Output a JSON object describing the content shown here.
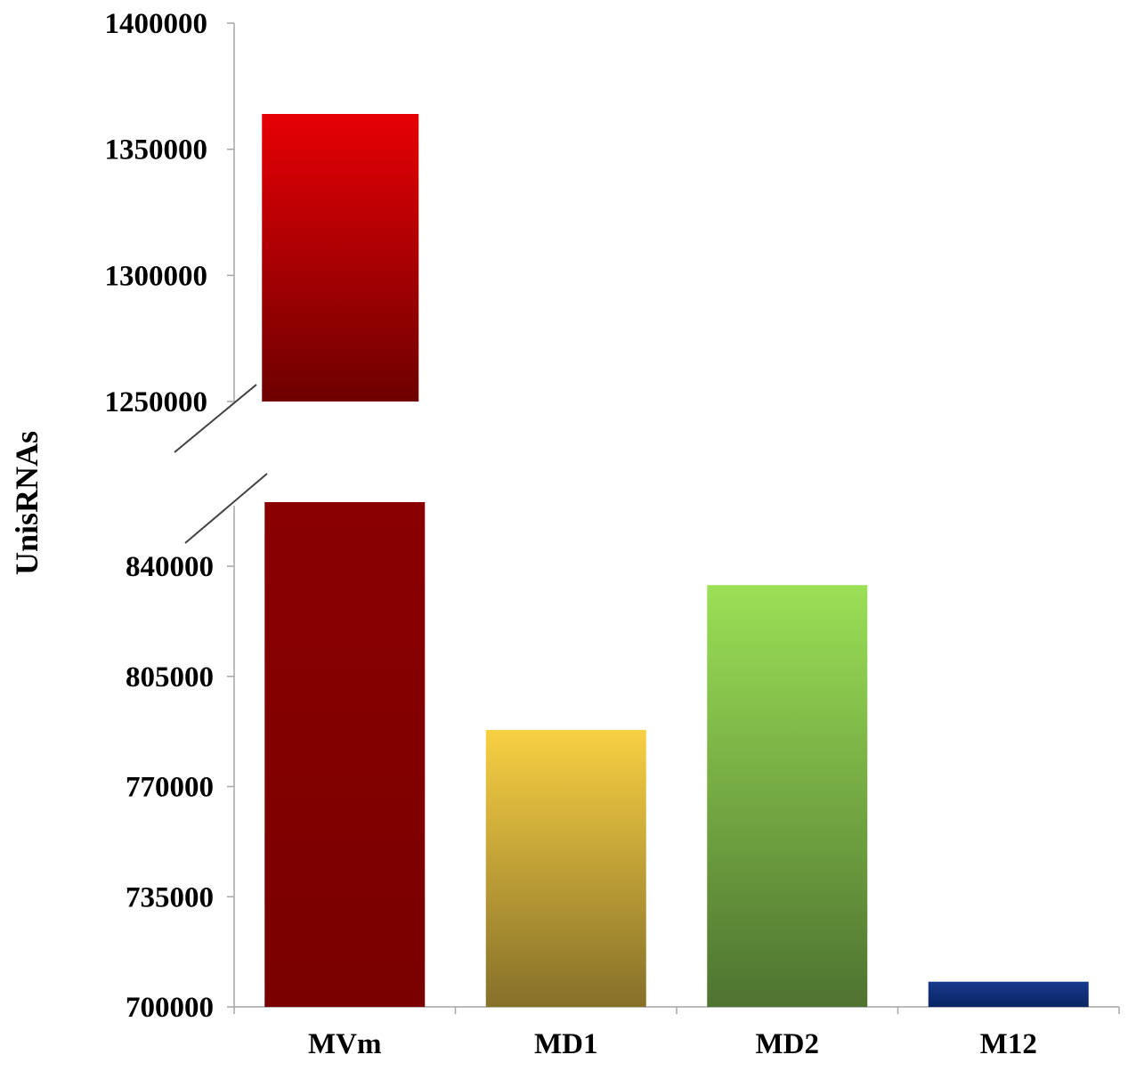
{
  "chart_data": {
    "type": "bar",
    "ylabel": "UnisRNAs",
    "xlabel": "",
    "title": "",
    "broken_axis": true,
    "categories": [
      "MVm",
      "MD1",
      "MD2",
      "M12"
    ],
    "values": [
      1364000,
      788000,
      834000,
      708000
    ],
    "upper_panel": {
      "ylim": [
        1250000,
        1400000
      ],
      "ticks": [
        "1400000",
        "1350000",
        "1300000",
        "1250000"
      ]
    },
    "lower_panel": {
      "ylim": [
        700000,
        855000
      ],
      "ticks": [
        "840000",
        "805000",
        "770000",
        "735000",
        "700000"
      ]
    },
    "grid": false,
    "legend": "none",
    "bar_colors": [
      {
        "top": "#e60005",
        "bottom": "#6e0000",
        "lower_top": "#8a0000",
        "lower_bottom": "#7a0000"
      },
      {
        "top": "#f8d043",
        "bottom": "#86702a"
      },
      {
        "top": "#9be056",
        "bottom": "#4e7330"
      },
      {
        "top": "#173a8e",
        "bottom": "#0b2563"
      }
    ]
  }
}
